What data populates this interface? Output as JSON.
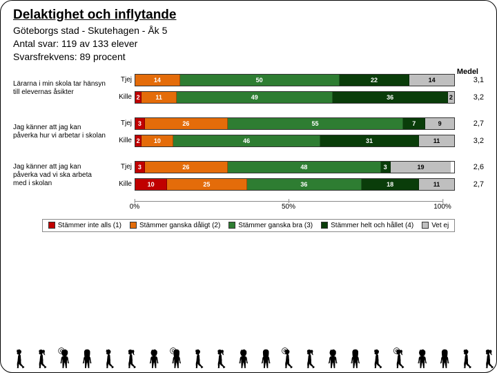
{
  "header": {
    "title": "Delaktighet och inflytande",
    "sub1": "Göteborgs stad - Skutehagen - Åk 5",
    "sub2": "Antal svar: 119 av 133 elever",
    "sub3": "Svarsfrekvens: 89 procent"
  },
  "medel_label": "Medel",
  "colors": {
    "c1": "#c00000",
    "c2": "#e46c0a",
    "c3": "#2e7d32",
    "c4": "#0a3d0a",
    "c5": "#bfbfbf"
  },
  "questions": [
    {
      "label": "Lärarna i min skola tar hänsyn till elevernas åsikter",
      "rows": [
        {
          "who": "Tjej",
          "segments": [
            0,
            14,
            50,
            22,
            14
          ],
          "medel": "3,1"
        },
        {
          "who": "Kille",
          "segments": [
            2,
            11,
            49,
            36,
            2
          ],
          "medel": "3,2"
        }
      ]
    },
    {
      "label": "Jag känner att jag kan påverka hur vi arbetar i skolan",
      "rows": [
        {
          "who": "Tjej",
          "segments": [
            3,
            26,
            55,
            7,
            9
          ],
          "medel": "2,7"
        },
        {
          "who": "Kille",
          "segments": [
            2,
            10,
            46,
            31,
            11
          ],
          "medel": "3,2"
        }
      ]
    },
    {
      "label": "Jag känner att jag kan påverka vad vi ska arbeta med i skolan",
      "rows": [
        {
          "who": "Tjej",
          "segments": [
            3,
            26,
            48,
            3,
            19
          ],
          "medel": "2,6"
        },
        {
          "who": "Kille",
          "segments": [
            10,
            25,
            36,
            18,
            11
          ],
          "medel": "2,7"
        }
      ]
    }
  ],
  "axis": {
    "ticks": [
      "0%",
      "50%",
      "100%"
    ]
  },
  "legend": [
    {
      "color_key": "c1",
      "label": "Stämmer inte alls (1)"
    },
    {
      "color_key": "c2",
      "label": "Stämmer ganska dåligt (2)"
    },
    {
      "color_key": "c3",
      "label": "Stämmer ganska bra (3)"
    },
    {
      "color_key": "c4",
      "label": "Stämmer helt och hållet (4)"
    },
    {
      "color_key": "c5",
      "label": "Vet ej"
    }
  ]
}
